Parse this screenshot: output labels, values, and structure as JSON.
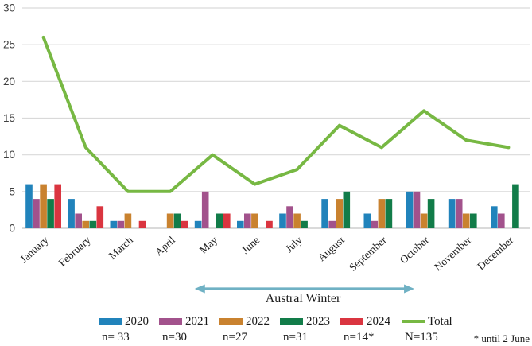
{
  "chart_data": {
    "type": "bar",
    "subtype": "grouped-bars-with-line-overlay",
    "title": "",
    "xlabel": "",
    "ylabel": "",
    "categories": [
      "January",
      "February",
      "March",
      "April",
      "May",
      "June",
      "July",
      "August",
      "September",
      "October",
      "November",
      "December"
    ],
    "series": [
      {
        "name": "2020",
        "render": "bar",
        "color": "#2183BB",
        "values": [
          6,
          4,
          1,
          0,
          1,
          1,
          2,
          4,
          2,
          5,
          4,
          3
        ],
        "count_label": "n= 33"
      },
      {
        "name": "2021",
        "render": "bar",
        "color": "#A2528C",
        "values": [
          4,
          2,
          1,
          0,
          5,
          2,
          3,
          1,
          1,
          5,
          4,
          2
        ],
        "count_label": "n=30"
      },
      {
        "name": "2022",
        "render": "bar",
        "color": "#C9822F",
        "values": [
          6,
          1,
          2,
          2,
          0,
          2,
          2,
          4,
          4,
          2,
          2,
          0
        ],
        "count_label": "n=27"
      },
      {
        "name": "2023",
        "render": "bar",
        "color": "#127C49",
        "values": [
          4,
          1,
          0,
          2,
          2,
          0,
          1,
          5,
          4,
          4,
          2,
          6
        ],
        "count_label": "n=31"
      },
      {
        "name": "2024",
        "render": "bar",
        "color": "#DA3540",
        "values": [
          6,
          3,
          1,
          1,
          2,
          1,
          0,
          0,
          0,
          0,
          0,
          0
        ],
        "count_label": "n=14*"
      },
      {
        "name": "Total",
        "render": "line",
        "color": "#77B843",
        "values": [
          26,
          11,
          5,
          5,
          10,
          6,
          8,
          14,
          11,
          16,
          12,
          11
        ],
        "count_label": "N=135"
      }
    ],
    "ylim": [
      0,
      30
    ],
    "ytick_step": 5,
    "ytick_labels": [
      "0",
      "5",
      "10",
      "15",
      "20",
      "25",
      "30"
    ],
    "grid": true,
    "legend_position": "bottom"
  },
  "annotation": {
    "label": "Austral Winter",
    "from_month": "May",
    "to_month": "October",
    "arrow_color": "#6FB1C4"
  },
  "footnote": "* until 2 June",
  "colors": {
    "gridline": "#D9D9D9",
    "axis_line": "#C4C4C4",
    "ytick_text": "#404040",
    "xtick_text": "#1F1F1F"
  }
}
